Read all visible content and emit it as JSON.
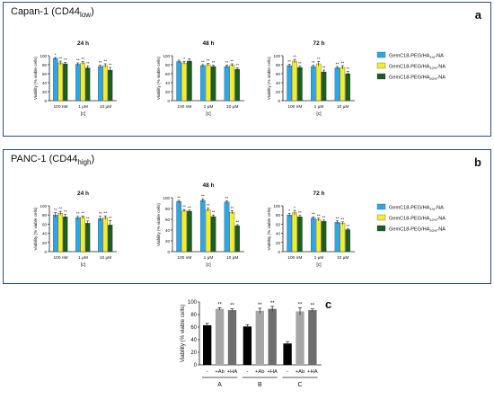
{
  "panel_a": {
    "title": "Capan-1 (CD44",
    "title_sub": "low",
    "title_end": ")",
    "label": "a"
  },
  "panel_b": {
    "title": "PANC-1 (CD44",
    "title_sub": "high",
    "title_end": ")",
    "label": "b"
  },
  "panel_c": {
    "label": "c"
  },
  "legend": [
    {
      "pre": "GemC18-PEG/HA",
      "sub": "1%",
      "post": "-NA",
      "color": "#2aa7e8"
    },
    {
      "pre": "GemC18-PEG/HA",
      "sub": "10%",
      "post": "-NA",
      "color": "#f3ee2a"
    },
    {
      "pre": "GemC18-PEG/HA",
      "sub": "20%",
      "post": "-NA",
      "color": "#1b5e20"
    }
  ],
  "chart_data": [
    {
      "id": "a24",
      "type": "bar",
      "title": "24 h",
      "categories": [
        "100 nM",
        "1 μM",
        "10 μM"
      ],
      "xlabel": "[c]",
      "ylabel": "Viability (% viable cells)",
      "ylim": [
        0,
        100
      ],
      "yticks": [
        "0",
        "20",
        "40",
        "60",
        "80",
        "100"
      ],
      "series": [
        {
          "values": [
            94,
            81,
            76
          ],
          "errors": [
            2,
            3,
            3
          ],
          "sig": [
            "*",
            "**",
            "**"
          ]
        },
        {
          "values": [
            84,
            84,
            78
          ],
          "errors": [
            4,
            3,
            4
          ],
          "sig": [
            "**",
            "**",
            "**"
          ]
        },
        {
          "values": [
            82,
            73,
            68
          ],
          "errors": [
            3,
            4,
            6
          ],
          "sig": [
            "**",
            "**",
            "**"
          ]
        }
      ]
    },
    {
      "id": "a48",
      "type": "bar",
      "title": "48 h",
      "categories": [
        "100 nM",
        "1 μM",
        "10 μM"
      ],
      "xlabel": "[c]",
      "ylabel": "Viability (% viable cells)",
      "ylim": [
        0,
        100
      ],
      "yticks": [
        "0",
        "20",
        "40",
        "60",
        "80",
        "100"
      ],
      "series": [
        {
          "values": [
            87,
            78,
            76
          ],
          "errors": [
            3,
            2,
            3
          ],
          "sig": [
            "",
            "**",
            "**"
          ]
        },
        {
          "values": [
            84,
            80,
            79
          ],
          "errors": [
            3,
            3,
            3
          ],
          "sig": [
            "*",
            "**",
            "**"
          ]
        },
        {
          "values": [
            88,
            76,
            70
          ],
          "errors": [
            5,
            3,
            3
          ],
          "sig": [
            "",
            "**",
            "**"
          ]
        }
      ]
    },
    {
      "id": "a72",
      "type": "bar",
      "title": "72 h",
      "categories": [
        "100 nM",
        "1 μM",
        "10 μM"
      ],
      "xlabel": "[c]",
      "ylabel": "Viability (% viable cells)",
      "ylim": [
        0,
        100
      ],
      "yticks": [
        "0",
        "20",
        "40",
        "60",
        "80",
        "100"
      ],
      "series": [
        {
          "values": [
            78,
            76,
            73
          ],
          "errors": [
            3,
            3,
            3
          ],
          "sig": [
            "**",
            "**",
            "**"
          ]
        },
        {
          "values": [
            88,
            82,
            74
          ],
          "errors": [
            4,
            5,
            4
          ],
          "sig": [
            "**",
            "**",
            "**"
          ]
        },
        {
          "values": [
            74,
            64,
            60
          ],
          "errors": [
            3,
            4,
            5
          ],
          "sig": [
            "**",
            "**",
            "**"
          ]
        }
      ]
    },
    {
      "id": "b24",
      "type": "bar",
      "title": "24 h",
      "categories": [
        "100 nM",
        "1 μM",
        "10 μM"
      ],
      "xlabel": "[c]",
      "ylabel": "Viability (% viable cells)",
      "ylim": [
        0,
        100
      ],
      "yticks": [
        "0",
        "20",
        "40",
        "60",
        "80",
        "100"
      ],
      "series": [
        {
          "values": [
            80,
            74,
            72
          ],
          "errors": [
            5,
            3,
            5
          ],
          "sig": [
            "**",
            "**",
            "**"
          ]
        },
        {
          "values": [
            84,
            75,
            74
          ],
          "errors": [
            4,
            3,
            4
          ],
          "sig": [
            "**",
            "**",
            "**"
          ]
        },
        {
          "values": [
            76,
            62,
            58
          ],
          "errors": [
            5,
            5,
            10
          ],
          "sig": [
            "**",
            "**",
            "**"
          ]
        }
      ]
    },
    {
      "id": "b48",
      "type": "bar",
      "title": "48 h",
      "categories": [
        "100 nM",
        "1 μM",
        "10 μM"
      ],
      "xlabel": "[c]",
      "ylabel": "Viability (% viable cells)",
      "ylim": [
        0,
        100
      ],
      "yticks": [
        "0",
        "20",
        "40",
        "60",
        "80",
        "100"
      ],
      "series": [
        {
          "values": [
            93,
            95,
            92
          ],
          "errors": [
            2,
            3,
            2
          ],
          "sig": [
            "**",
            "**",
            "**"
          ]
        },
        {
          "values": [
            76,
            78,
            73
          ],
          "errors": [
            2,
            3,
            3
          ],
          "sig": [
            "**",
            "**",
            "**"
          ]
        },
        {
          "values": [
            75,
            65,
            48
          ],
          "errors": [
            2,
            3,
            2
          ],
          "sig": [
            "**",
            "**",
            "**"
          ]
        }
      ]
    },
    {
      "id": "b72",
      "type": "bar",
      "title": "72 h",
      "categories": [
        "100 nM",
        "1 μM",
        "10 μM"
      ],
      "xlabel": "[c]",
      "ylabel": "Viability (% viable cells)",
      "ylim": [
        0,
        100
      ],
      "yticks": [
        "0",
        "20",
        "40",
        "60",
        "80",
        "100"
      ],
      "series": [
        {
          "values": [
            80,
            73,
            64
          ],
          "errors": [
            3,
            3,
            3
          ],
          "sig": [
            "*",
            "**",
            "**"
          ]
        },
        {
          "values": [
            85,
            70,
            62
          ],
          "errors": [
            5,
            3,
            3
          ],
          "sig": [
            "*",
            "**",
            "**"
          ]
        },
        {
          "values": [
            76,
            66,
            48
          ],
          "errors": [
            3,
            3,
            2
          ],
          "sig": [
            "**",
            "**",
            "**"
          ]
        }
      ]
    },
    {
      "id": "c",
      "type": "bar",
      "categories": [
        "-",
        "+Ab",
        "+HA",
        "-",
        "+Ab",
        "+HA",
        "-",
        "+Ab",
        "+HA"
      ],
      "groups": [
        "A",
        "B",
        "C"
      ],
      "ylabel": "Viability (% viable cells)",
      "ylim": [
        0,
        100
      ],
      "yticks": [
        "0",
        "20",
        "40",
        "60",
        "80",
        "100"
      ],
      "values": [
        63,
        89,
        87,
        61,
        86,
        89,
        34,
        85,
        87
      ],
      "errors": [
        3,
        2,
        2,
        3,
        4,
        4,
        3,
        6,
        2
      ],
      "sig": [
        "",
        "**",
        "**",
        "",
        "**",
        "**",
        "",
        "**",
        "**"
      ],
      "colors": [
        "#000000",
        "#a6a6a6",
        "#6e6e6e",
        "#000000",
        "#a6a6a6",
        "#6e6e6e",
        "#000000",
        "#a6a6a6",
        "#6e6e6e"
      ]
    }
  ]
}
